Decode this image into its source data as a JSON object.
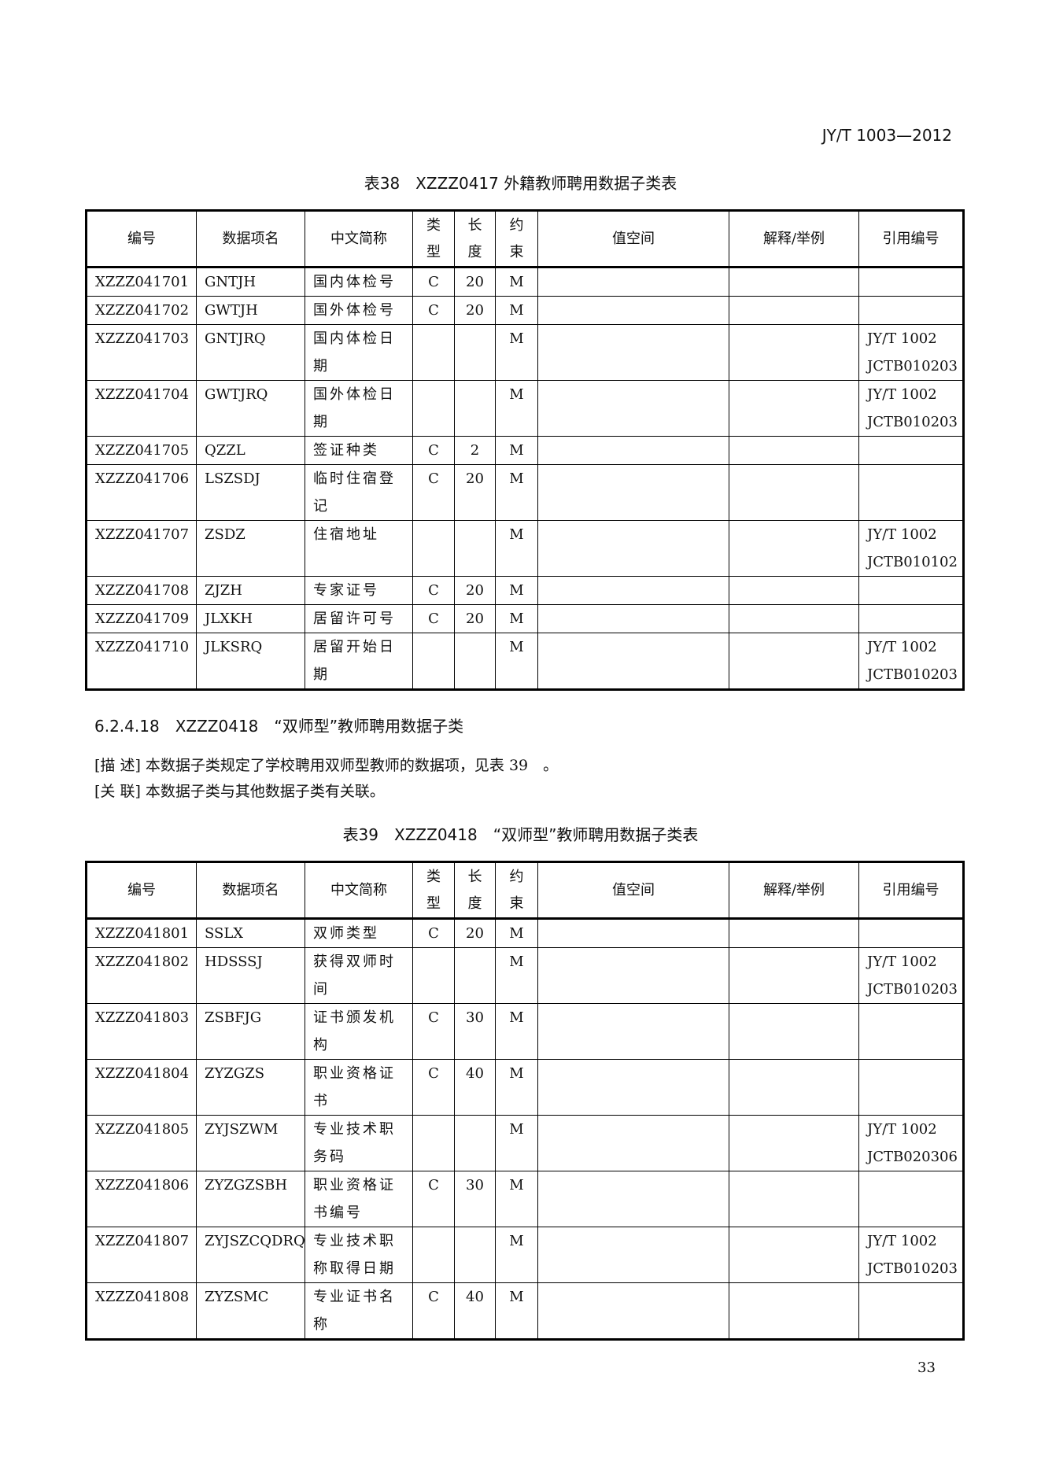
{
  "header": "JY/T 1003—2012",
  "columns": [
    "编号",
    "数据项名",
    "中文简称",
    "类\n型",
    "长\n度",
    "约\n束",
    "值空间",
    "解释/举例",
    "引用编号"
  ],
  "table38": {
    "caption": "表38　XZZZ0417 外籍教师聘用数据子类表",
    "rows": [
      [
        "XZZZ041701",
        "GNTJH",
        "国内体检号",
        "C",
        "20",
        "M",
        "",
        "",
        ""
      ],
      [
        "XZZZ041702",
        "GWTJH",
        "国外体检号",
        "C",
        "20",
        "M",
        "",
        "",
        ""
      ],
      [
        "XZZZ041703",
        "GNTJRQ",
        "国内体检日期",
        "",
        "",
        "M",
        "",
        "",
        "JY/T 1002 JCTB010203"
      ],
      [
        "XZZZ041704",
        "GWTJRQ",
        "国外体检日期",
        "",
        "",
        "M",
        "",
        "",
        "JY/T 1002 JCTB010203"
      ],
      [
        "XZZZ041705",
        "QZZL",
        "签证种类",
        "C",
        "2",
        "M",
        "",
        "",
        ""
      ],
      [
        "XZZZ041706",
        "LSZSDJ",
        "临时住宿登记",
        "C",
        "20",
        "M",
        "",
        "",
        ""
      ],
      [
        "XZZZ041707",
        "ZSDZ",
        "住宿地址",
        "",
        "",
        "M",
        "",
        "",
        "JY/T 1002 JCTB010102"
      ],
      [
        "XZZZ041708",
        "ZJZH",
        "专家证号",
        "C",
        "20",
        "M",
        "",
        "",
        ""
      ],
      [
        "XZZZ041709",
        "JLXKH",
        "居留许可号",
        "C",
        "20",
        "M",
        "",
        "",
        ""
      ],
      [
        "XZZZ041710",
        "JLKSRQ",
        "居留开始日期",
        "",
        "",
        "M",
        "",
        "",
        "JY/T 1002 JCTB010203"
      ]
    ]
  },
  "section": {
    "heading": "6.2.4.18　XZZZ0418　“双师型”教师聘用数据子类",
    "desc": "[描 述] 本数据子类规定了学校聘用双师型教师的数据项，见表 39　。",
    "rel": "[关 联] 本数据子类与其他数据子类有关联。"
  },
  "table39": {
    "caption": "表39　XZZZ0418　“双师型”教师聘用数据子类表",
    "rows": [
      [
        "XZZZ041801",
        "SSLX",
        "双师类型",
        "C",
        "20",
        "M",
        "",
        "",
        ""
      ],
      [
        "XZZZ041802",
        "HDSSSJ",
        "获得双师时间",
        "",
        "",
        "M",
        "",
        "",
        "JY/T 1002 JCTB010203"
      ],
      [
        "XZZZ041803",
        "ZSBFJG",
        "证书颁发机构",
        "C",
        "30",
        "M",
        "",
        "",
        ""
      ],
      [
        "XZZZ041804",
        "ZYZGZS",
        "职业资格证书",
        "C",
        "40",
        "M",
        "",
        "",
        ""
      ],
      [
        "XZZZ041805",
        "ZYJSZWM",
        "专业技术职务码",
        "",
        "",
        "M",
        "",
        "",
        "JY/T 1002 JCTB020306"
      ],
      [
        "XZZZ041806",
        "ZYZGZSBH",
        "职业资格证书编号",
        "C",
        "30",
        "M",
        "",
        "",
        ""
      ],
      [
        "XZZZ041807",
        "ZYJSZCQDRQ",
        "专业技术职称取得日期",
        "",
        "",
        "M",
        "",
        "",
        "JY/T 1002 JCTB010203"
      ],
      [
        "XZZZ041808",
        "ZYZSMC",
        "专业证书名称",
        "C",
        "40",
        "M",
        "",
        "",
        ""
      ]
    ]
  },
  "page_number": "33"
}
